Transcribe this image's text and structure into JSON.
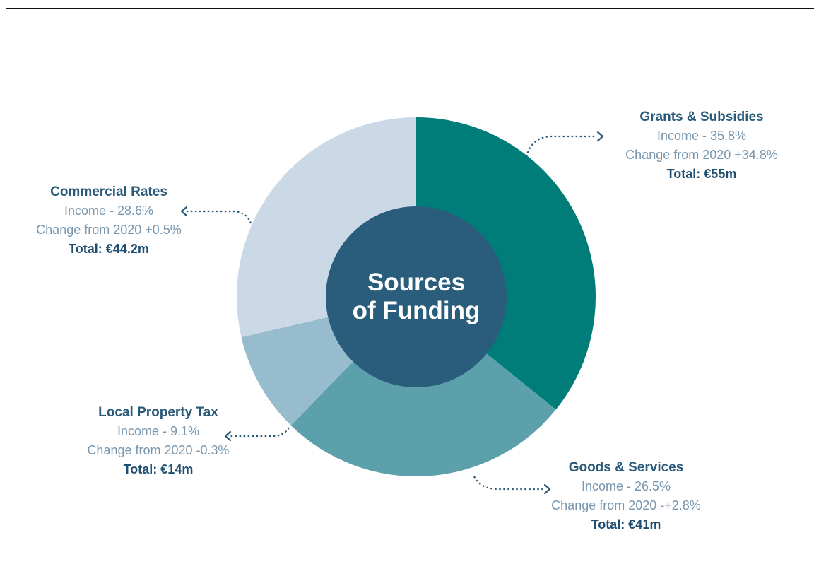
{
  "chart_data": {
    "type": "pie",
    "center_title_lines": [
      "Sources",
      "of Funding"
    ],
    "slices": [
      {
        "name": "Grants & Subsidies",
        "value": 35.8,
        "color": "#007d78",
        "income_text": "Income - 35.8%",
        "change_text": "Change from 2020 +34.8%",
        "total_text": "Total: €55m"
      },
      {
        "name": "Goods & Services",
        "value": 26.5,
        "color": "#5ba0ab",
        "income_text": "Income - 26.5%",
        "change_text": "Change from 2020 -+2.8%",
        "total_text": "Total: €41m"
      },
      {
        "name": "Local Property Tax",
        "value": 9.1,
        "color": "#97bccd",
        "income_text": "Income - 9.1%",
        "change_text": "Change from 2020 -0.3%",
        "total_text": "Total: €14m"
      },
      {
        "name": "Commercial Rates",
        "value": 28.6,
        "color": "#cbd9e7",
        "income_text": "Income - 28.6%",
        "change_text": "Change from 2020 +0.5%",
        "total_text": "Total: €44.2m"
      }
    ],
    "center_color": "#2a5d7c",
    "text_color": "#2a5a7a",
    "legend": "none"
  }
}
